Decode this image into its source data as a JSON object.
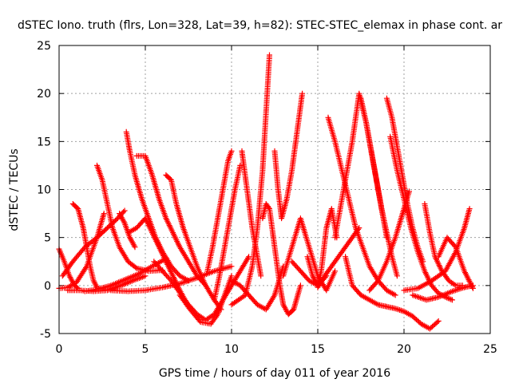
{
  "chart_data": {
    "type": "scatter",
    "title": "dSTEC Iono. truth (flrs, Lon=328, Lat=39, h=82): STEC-STEC_elemax in phase cont. ar",
    "xlabel": "GPS time / hours of day 011 of year 2016",
    "ylabel": "dSTEC  / TECUs",
    "xlim": [
      0,
      25
    ],
    "ylim": [
      -5,
      25
    ],
    "xticks": [
      "0",
      "5",
      "10",
      "15",
      "20",
      "25"
    ],
    "yticks": [
      "-5",
      "0",
      "5",
      "10",
      "15",
      "20",
      "25"
    ],
    "grid": true,
    "marker": "+",
    "color": "#ff0000",
    "series": [
      {
        "x": [
          0.0,
          0.3,
          0.6,
          0.9,
          1.1
        ],
        "y": [
          3.8,
          2.5,
          1.0,
          0.0,
          -0.3
        ]
      },
      {
        "x": [
          0.0,
          0.5,
          1.0,
          1.6,
          2.2,
          2.6
        ],
        "y": [
          -0.3,
          -0.2,
          0.3,
          2.0,
          5.0,
          7.5
        ]
      },
      {
        "x": [
          0.2,
          0.8,
          1.5,
          2.2,
          2.8,
          3.4,
          3.8
        ],
        "y": [
          1.0,
          2.5,
          4.0,
          5.0,
          6.0,
          7.0,
          7.8
        ]
      },
      {
        "x": [
          0.5,
          1.2,
          2.0,
          2.8,
          3.6,
          4.4,
          5.0
        ],
        "y": [
          -0.5,
          -0.5,
          -0.6,
          -0.5,
          0.0,
          0.6,
          1.0
        ]
      },
      {
        "x": [
          0.8,
          1.1,
          1.4,
          1.6,
          1.8,
          2.0,
          2.2
        ],
        "y": [
          8.5,
          8.0,
          6.0,
          4.0,
          2.0,
          0.5,
          -0.2
        ]
      },
      {
        "x": [
          2.2,
          2.5,
          2.8,
          3.1,
          3.5,
          4.0,
          4.5,
          5.2,
          6.0
        ],
        "y": [
          12.5,
          11.0,
          8.5,
          6.0,
          4.0,
          2.5,
          1.8,
          1.5,
          1.6
        ]
      },
      {
        "x": [
          1.5,
          2.2,
          3.0,
          3.8,
          4.6,
          5.4,
          6.2
        ],
        "y": [
          -0.6,
          -0.4,
          0.0,
          0.6,
          1.2,
          2.0,
          2.8
        ]
      },
      {
        "x": [
          3.5,
          3.8,
          4.1,
          4.4
        ],
        "y": [
          7.5,
          6.5,
          5.0,
          4.0
        ]
      },
      {
        "x": [
          3.9,
          4.1,
          4.4,
          4.8,
          5.2,
          5.6,
          6.0,
          6.5,
          7.0,
          7.5
        ],
        "y": [
          16.0,
          14.0,
          11.5,
          9.0,
          7.0,
          5.0,
          3.5,
          2.0,
          1.0,
          0.5
        ]
      },
      {
        "x": [
          4.0,
          4.5,
          5.0,
          5.4,
          5.8,
          6.2,
          6.6,
          7.0,
          7.6
        ],
        "y": [
          5.5,
          6.0,
          7.0,
          5.5,
          4.0,
          2.5,
          1.0,
          -0.5,
          -2.5
        ]
      },
      {
        "x": [
          4.5,
          5.0,
          5.4,
          5.8,
          6.2,
          6.6,
          7.0,
          7.5,
          8.0,
          8.5
        ],
        "y": [
          13.5,
          13.5,
          11.5,
          9.0,
          7.0,
          5.5,
          4.0,
          2.5,
          1.0,
          0.0
        ]
      },
      {
        "x": [
          6.2,
          6.5,
          6.8,
          7.2,
          7.6,
          8.0,
          8.5,
          9.0,
          9.4
        ],
        "y": [
          11.5,
          11.0,
          8.5,
          6.0,
          4.0,
          2.0,
          0.0,
          -1.5,
          -2.5
        ]
      },
      {
        "x": [
          3.0,
          4.0,
          5.0,
          6.0,
          7.0,
          8.0,
          9.0,
          10.0
        ],
        "y": [
          -0.5,
          -0.6,
          -0.5,
          -0.2,
          0.2,
          0.8,
          1.5,
          2.0
        ]
      },
      {
        "x": [
          5.5,
          6.5,
          7.5,
          8.0,
          8.5,
          9.0,
          9.5,
          10.0,
          10.5,
          11.0
        ],
        "y": [
          2.5,
          0.5,
          -2.0,
          -3.0,
          -3.6,
          -3.0,
          -1.5,
          0.0,
          1.5,
          3.0
        ]
      },
      {
        "x": [
          7.0,
          7.6,
          8.2,
          8.8,
          9.2,
          9.6,
          10.0
        ],
        "y": [
          -1.0,
          -2.5,
          -3.8,
          -4.0,
          -3.0,
          -1.0,
          1.0
        ]
      },
      {
        "x": [
          8.6,
          8.9,
          9.2,
          9.5,
          9.8,
          10.0
        ],
        "y": [
          1.5,
          4.0,
          7.0,
          10.0,
          13.0,
          14.0
        ]
      },
      {
        "x": [
          9.0,
          9.3,
          9.6,
          9.9,
          10.2,
          10.5
        ],
        "y": [
          -1.5,
          1.0,
          4.0,
          7.0,
          10.0,
          12.5
        ]
      },
      {
        "x": [
          10.6,
          10.9,
          11.2,
          11.5,
          11.7
        ],
        "y": [
          14.0,
          10.0,
          6.0,
          3.0,
          1.0
        ]
      },
      {
        "x": [
          10.0,
          10.4,
          10.8,
          11.2,
          11.5,
          11.8,
          12.0,
          12.2
        ],
        "y": [
          -2.0,
          -1.5,
          -1.0,
          2.0,
          6.0,
          12.0,
          18.0,
          24.0
        ]
      },
      {
        "x": [
          10.0,
          10.5,
          11.0,
          11.5,
          12.0,
          12.5,
          13.0
        ],
        "y": [
          0.5,
          0.0,
          -1.0,
          -2.0,
          -2.5,
          -1.0,
          2.0
        ]
      },
      {
        "x": [
          11.8,
          12.0,
          12.2,
          12.5,
          12.8,
          13.0,
          13.3,
          13.6,
          14.0
        ],
        "y": [
          7.0,
          8.5,
          8.0,
          4.0,
          0.0,
          -2.0,
          -3.0,
          -2.5,
          0.0
        ]
      },
      {
        "x": [
          12.5,
          12.7,
          12.9,
          13.2,
          13.5,
          13.8,
          14.1
        ],
        "y": [
          14.0,
          10.0,
          7.0,
          9.0,
          12.0,
          16.0,
          20.0
        ]
      },
      {
        "x": [
          13.0,
          13.5,
          14.0,
          14.5,
          15.0,
          15.5,
          16.0
        ],
        "y": [
          1.0,
          4.0,
          7.0,
          4.0,
          1.0,
          -0.5,
          1.5
        ]
      },
      {
        "x": [
          13.5,
          14.0,
          14.5,
          15.0,
          15.5
        ],
        "y": [
          2.5,
          1.5,
          0.5,
          0.0,
          1.0
        ]
      },
      {
        "x": [
          14.4,
          14.7,
          15.0,
          15.2,
          15.5,
          15.8,
          16.1
        ],
        "y": [
          3.0,
          1.0,
          0.0,
          1.5,
          6.0,
          8.0,
          5.0
        ]
      },
      {
        "x": [
          15.0,
          15.4,
          15.8,
          16.2,
          16.6,
          17.0,
          17.4
        ],
        "y": [
          -0.2,
          1.0,
          2.0,
          3.0,
          4.0,
          5.0,
          6.0
        ]
      },
      {
        "x": [
          15.6,
          16.0,
          16.4,
          16.8,
          17.2,
          17.6,
          18.0,
          18.5,
          19.0,
          19.5
        ],
        "y": [
          17.5,
          15.0,
          12.0,
          9.0,
          6.0,
          4.0,
          2.0,
          0.5,
          -0.5,
          -1.0
        ]
      },
      {
        "x": [
          16.0,
          16.5,
          17.0,
          17.4,
          17.8,
          18.2,
          18.6,
          19.0
        ],
        "y": [
          5.0,
          10.0,
          15.0,
          20.0,
          17.0,
          13.0,
          9.0,
          5.0
        ]
      },
      {
        "x": [
          16.6,
          17.0,
          17.5,
          18.0,
          18.5,
          19.0,
          19.5,
          20.0,
          20.5,
          21.0,
          21.5,
          22.0
        ],
        "y": [
          3.0,
          0.0,
          -1.0,
          -1.5,
          -2.0,
          -2.2,
          -2.4,
          -2.7,
          -3.2,
          -4.0,
          -4.5,
          -3.7
        ]
      },
      {
        "x": [
          17.5,
          17.8,
          18.1,
          18.4,
          18.7,
          19.0,
          19.3,
          19.6
        ],
        "y": [
          19.5,
          17.0,
          14.0,
          11.0,
          8.0,
          5.5,
          3.0,
          1.0
        ]
      },
      {
        "x": [
          19.0,
          19.3,
          19.6,
          19.9,
          20.2,
          20.5,
          20.8,
          21.1
        ],
        "y": [
          19.5,
          17.5,
          14.5,
          11.5,
          8.5,
          6.0,
          4.0,
          2.5
        ]
      },
      {
        "x": [
          19.2,
          19.6,
          20.0,
          20.4,
          20.8,
          21.2,
          21.6,
          22.0,
          22.4,
          22.8
        ],
        "y": [
          15.5,
          12.0,
          9.0,
          6.0,
          3.5,
          1.5,
          0.0,
          -0.8,
          -1.2,
          -1.5
        ]
      },
      {
        "x": [
          18.0,
          18.5,
          19.0,
          19.5,
          20.0,
          20.3
        ],
        "y": [
          -0.5,
          0.5,
          2.5,
          5.0,
          8.0,
          9.8
        ]
      },
      {
        "x": [
          21.2,
          21.5,
          21.8,
          22.2,
          22.6,
          23.0,
          23.4
        ],
        "y": [
          8.5,
          5.5,
          3.0,
          1.5,
          0.5,
          0.0,
          0.0
        ]
      },
      {
        "x": [
          20.0,
          20.8,
          21.6,
          22.4,
          23.0,
          23.5,
          23.8
        ],
        "y": [
          -0.5,
          -0.3,
          0.5,
          1.5,
          3.5,
          6.0,
          8.0
        ]
      },
      {
        "x": [
          22.0,
          22.5,
          23.0,
          23.5,
          24.0
        ],
        "y": [
          3.0,
          5.0,
          4.0,
          1.5,
          -0.3
        ]
      },
      {
        "x": [
          20.5,
          21.3,
          22.0,
          22.8,
          23.5,
          24.0
        ],
        "y": [
          -1.0,
          -1.5,
          -1.2,
          -0.6,
          -0.2,
          0.0
        ]
      }
    ]
  }
}
